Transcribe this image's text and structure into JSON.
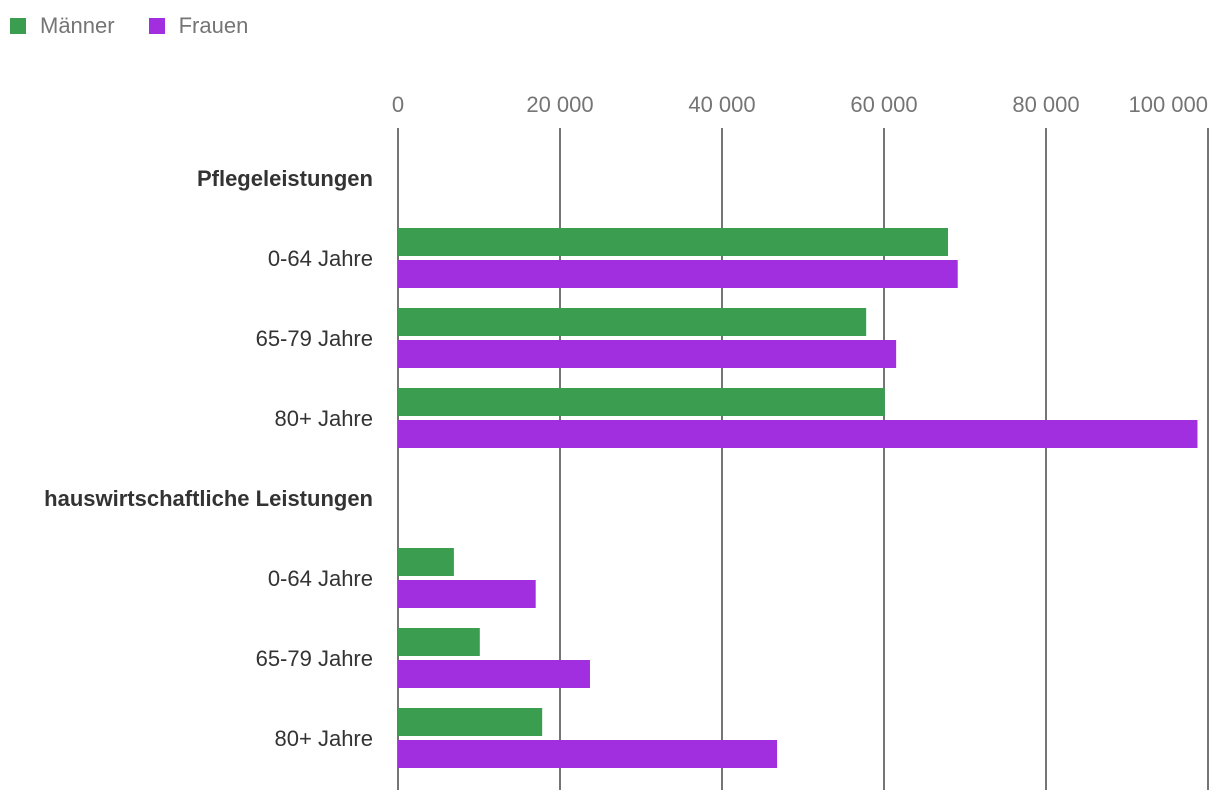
{
  "legend": {
    "items": [
      {
        "label": "Männer",
        "color": "#3a9d50"
      },
      {
        "label": "Frauen",
        "color": "#a22fdf"
      }
    ]
  },
  "chart_data": {
    "type": "bar",
    "orientation": "horizontal",
    "xlim": [
      0,
      100000
    ],
    "x_ticks": [
      {
        "value": 0,
        "label": "0"
      },
      {
        "value": 20000,
        "label": "20 000"
      },
      {
        "value": 40000,
        "label": "40 000"
      },
      {
        "value": 60000,
        "label": "60 000"
      },
      {
        "value": 80000,
        "label": "80 000"
      },
      {
        "value": 100000,
        "label": "100 000"
      }
    ],
    "grid": true,
    "legend_position": "top-left",
    "series": [
      {
        "name": "Männer",
        "color": "#3a9d50"
      },
      {
        "name": "Frauen",
        "color": "#a22fdf"
      }
    ],
    "groups": [
      {
        "label": "Pflegeleistungen",
        "categories": [
          {
            "label": "0-64 Jahre",
            "values": [
              67900,
              69100
            ]
          },
          {
            "label": "65-79 Jahre",
            "values": [
              57800,
              61500
            ]
          },
          {
            "label": "80+ Jahre",
            "values": [
              60100,
              98700
            ]
          }
        ]
      },
      {
        "label": "hauswirtschaftliche Leistungen",
        "categories": [
          {
            "label": "0-64 Jahre",
            "values": [
              6900,
              17000
            ]
          },
          {
            "label": "65-79 Jahre",
            "values": [
              10100,
              23700
            ]
          },
          {
            "label": "80+ Jahre",
            "values": [
              17800,
              46800
            ]
          }
        ]
      }
    ]
  }
}
